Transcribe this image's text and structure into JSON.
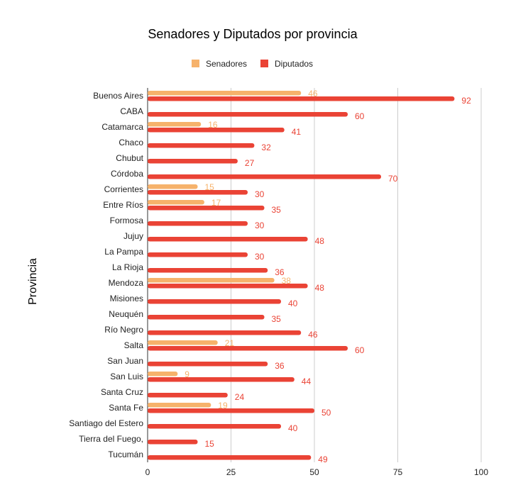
{
  "chart_data": {
    "type": "bar",
    "orientation": "horizontal",
    "title": "Senadores y Diputados por provincia",
    "xlabel": "",
    "ylabel": "Provincia",
    "xlim": [
      0,
      100
    ],
    "xticks": [
      "0",
      "25",
      "50",
      "75",
      "100"
    ],
    "grid": true,
    "legend_position": "top",
    "categories": [
      "Buenos Aires",
      "CABA",
      "Catamarca",
      "Chaco",
      "Chubut",
      "Córdoba",
      "Corrientes",
      "Entre Ríos",
      "Formosa",
      "Jujuy",
      "La Pampa",
      "La Rioja",
      "Mendoza",
      "Misiones",
      "Neuquén",
      "Río Negro",
      "Salta",
      "San Juan",
      "San Luis",
      "Santa Cruz",
      "Santa Fe",
      "Santiago del Estero",
      "Tierra del Fuego,",
      "Tucumán"
    ],
    "series": [
      {
        "name": "Senadores",
        "color": "#f6b26b",
        "values": [
          46,
          null,
          16,
          null,
          null,
          null,
          15,
          17,
          null,
          null,
          null,
          null,
          38,
          null,
          null,
          null,
          21,
          null,
          9,
          null,
          19,
          null,
          null,
          null
        ]
      },
      {
        "name": "Diputados",
        "color": "#ea4335",
        "values": [
          92,
          60,
          41,
          32,
          27,
          70,
          30,
          35,
          30,
          48,
          30,
          36,
          48,
          40,
          35,
          46,
          60,
          36,
          44,
          24,
          50,
          40,
          15,
          49
        ]
      }
    ]
  }
}
